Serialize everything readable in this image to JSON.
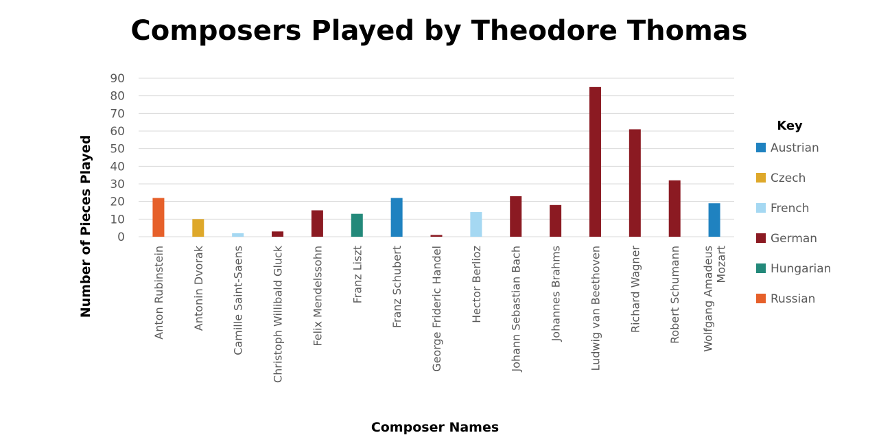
{
  "chart_data": {
    "type": "bar",
    "title": "Composers Played by Theodore Thomas",
    "xlabel": "Composer Names",
    "ylabel": "Number of Pieces Played",
    "ylim": [
      0,
      90
    ],
    "yticks": [
      0,
      10,
      20,
      30,
      40,
      50,
      60,
      70,
      80,
      90
    ],
    "grid": true,
    "legend_title": "Key",
    "legend_position": "right",
    "categories": [
      "Anton Rubinstein",
      "Antonin Dvorak",
      "Camille Saint-Saens",
      "Christoph Willibald Gluck",
      "Felix Mendelssohn",
      "Franz Liszt",
      "Franz Schubert",
      "George Frideric Handel",
      "Hector Berlioz",
      "Johann Sebastian Bach",
      "Johannes Brahms",
      "Ludwig van Beethoven",
      "Richard Wagner",
      "Robert Schumann",
      [
        "Wolfgang Amadeus",
        "Mozart"
      ]
    ],
    "values": [
      22,
      10,
      2,
      3,
      15,
      13,
      22,
      1,
      14,
      23,
      18,
      85,
      61,
      32,
      19
    ],
    "groups": [
      "Russian",
      "Czech",
      "French",
      "German",
      "German",
      "Hungarian",
      "Austrian",
      "German",
      "French",
      "German",
      "German",
      "German",
      "German",
      "German",
      "Austrian"
    ],
    "legend": [
      {
        "name": "Austrian",
        "color": "#1f82c0"
      },
      {
        "name": "Czech",
        "color": "#dea82a"
      },
      {
        "name": "French",
        "color": "#a5d8f2"
      },
      {
        "name": "German",
        "color": "#8b1a22"
      },
      {
        "name": "Hungarian",
        "color": "#23897a"
      },
      {
        "name": "Russian",
        "color": "#e6602a"
      }
    ]
  }
}
